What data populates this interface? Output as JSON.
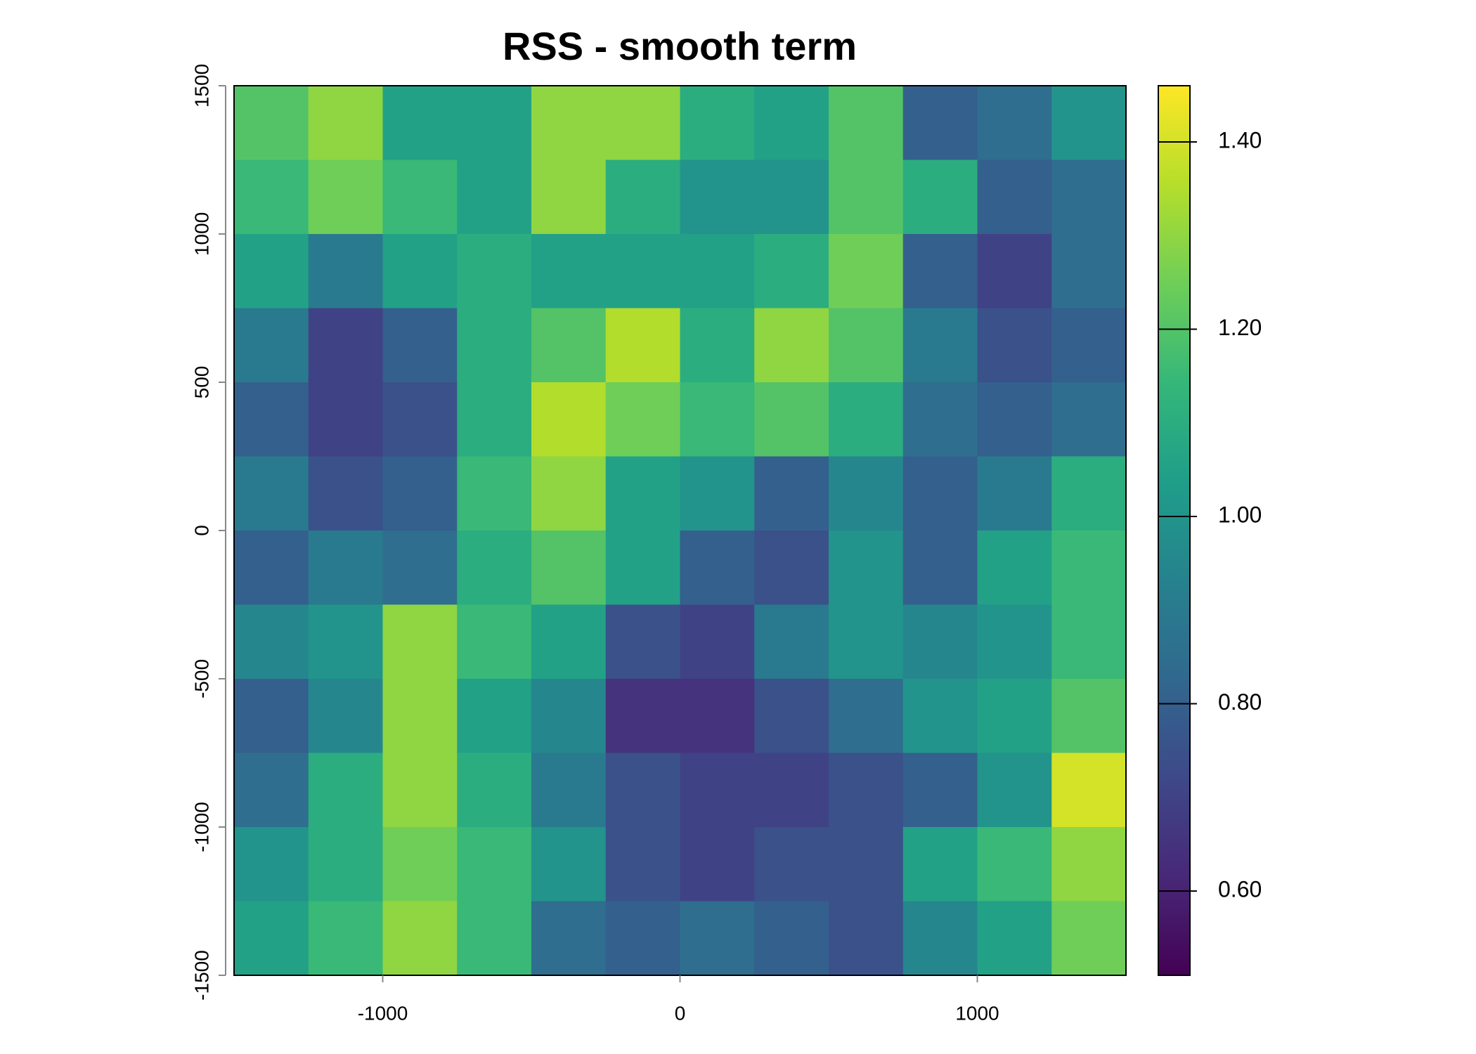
{
  "chart_data": {
    "type": "heatmap",
    "title": "RSS - smooth term",
    "x": [
      -1375,
      -1125,
      -875,
      -625,
      -375,
      -125,
      125,
      375,
      625,
      875,
      1125,
      1375
    ],
    "y": [
      1375,
      1125,
      875,
      625,
      375,
      125,
      -125,
      -375,
      -625,
      -875,
      -1125,
      -1375
    ],
    "z": [
      [
        1.2,
        1.3,
        1.05,
        1.05,
        1.3,
        1.3,
        1.1,
        1.05,
        1.2,
        0.8,
        0.85,
        1.0
      ],
      [
        1.15,
        1.25,
        1.15,
        1.05,
        1.3,
        1.1,
        1.0,
        1.0,
        1.2,
        1.1,
        0.8,
        0.85
      ],
      [
        1.05,
        0.9,
        1.05,
        1.1,
        1.05,
        1.05,
        1.05,
        1.1,
        1.25,
        0.8,
        0.7,
        0.85
      ],
      [
        0.9,
        0.7,
        0.8,
        1.1,
        1.2,
        1.35,
        1.1,
        1.3,
        1.2,
        0.9,
        0.75,
        0.8
      ],
      [
        0.8,
        0.7,
        0.75,
        1.1,
        1.35,
        1.25,
        1.15,
        1.2,
        1.1,
        0.85,
        0.8,
        0.85
      ],
      [
        0.9,
        0.75,
        0.8,
        1.15,
        1.3,
        1.05,
        1.0,
        0.8,
        0.95,
        0.8,
        0.9,
        1.1
      ],
      [
        0.8,
        0.9,
        0.85,
        1.1,
        1.2,
        1.05,
        0.8,
        0.75,
        1.0,
        0.8,
        1.05,
        1.15
      ],
      [
        0.95,
        1.0,
        1.3,
        1.15,
        1.05,
        0.75,
        0.7,
        0.9,
        1.0,
        0.95,
        1.0,
        1.15
      ],
      [
        0.8,
        0.95,
        1.3,
        1.05,
        0.95,
        0.65,
        0.65,
        0.75,
        0.85,
        1.0,
        1.05,
        1.2
      ],
      [
        0.85,
        1.1,
        1.3,
        1.1,
        0.9,
        0.75,
        0.7,
        0.7,
        0.75,
        0.8,
        1.0,
        1.4
      ],
      [
        1.0,
        1.1,
        1.25,
        1.15,
        1.0,
        0.75,
        0.7,
        0.75,
        0.75,
        1.05,
        1.15,
        1.3
      ],
      [
        1.05,
        1.15,
        1.3,
        1.15,
        0.85,
        0.8,
        0.85,
        0.8,
        0.75,
        0.95,
        1.05,
        1.25
      ]
    ],
    "xlim": [
      -1500,
      1500
    ],
    "ylim": [
      -1500,
      1500
    ],
    "xticks": [
      -1000,
      0,
      1000
    ],
    "yticks": [
      -1500,
      -1000,
      -500,
      0,
      500,
      1000,
      1500
    ],
    "zlim": [
      0.51,
      1.46
    ],
    "zticks": [
      {
        "value": 0.6,
        "label": "0.60"
      },
      {
        "value": 0.8,
        "label": "0.80"
      },
      {
        "value": 1.0,
        "label": "1.00"
      },
      {
        "value": 1.2,
        "label": "1.20"
      },
      {
        "value": 1.4,
        "label": "1.40"
      }
    ],
    "colormap": [
      "#440154",
      "#482878",
      "#3e4989",
      "#31688e",
      "#26828e",
      "#1f9e89",
      "#35b779",
      "#6ece58",
      "#b5de2b",
      "#fde725"
    ]
  }
}
